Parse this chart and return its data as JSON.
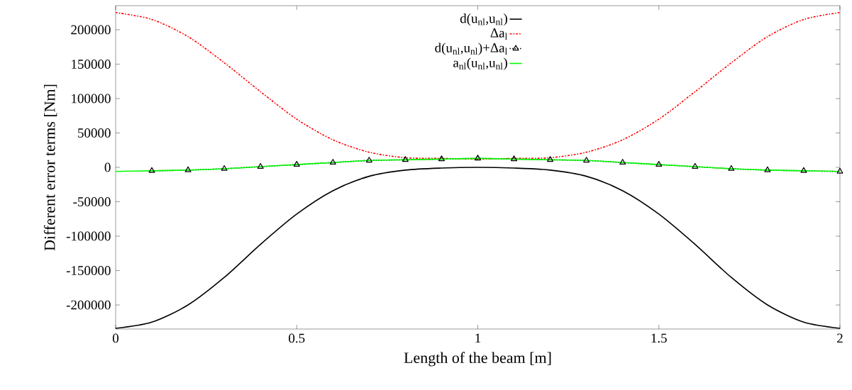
{
  "chart_data": {
    "type": "line",
    "xlabel": "Length of the beam [m]",
    "ylabel": "Different error terms [Nm]",
    "x": [
      0,
      0.1,
      0.2,
      0.3,
      0.4,
      0.5,
      0.6,
      0.7,
      0.8,
      0.9,
      1.0,
      1.1,
      1.2,
      1.3,
      1.4,
      1.5,
      1.6,
      1.7,
      1.8,
      1.9,
      2.0
    ],
    "series": [
      {
        "name": "d(u$_{nl}$,u$_{nl}$)",
        "color": "#000000",
        "line_style": "solid",
        "values": [
          -234000,
          -225000,
          -200000,
          -160000,
          -112000,
          -68000,
          -34000,
          -13000,
          -4000,
          -1000,
          0,
          -1000,
          -4000,
          -13000,
          -34000,
          -68000,
          -112000,
          -160000,
          -200000,
          -225000,
          -234000
        ]
      },
      {
        "name": "Δa$_{l}$",
        "color": "#ff0000",
        "line_style": "dashdot",
        "values": [
          225000,
          215000,
          190000,
          152000,
          110000,
          70000,
          40000,
          22000,
          14000,
          13000,
          12000,
          13000,
          14000,
          22000,
          40000,
          70000,
          110000,
          152000,
          190000,
          215000,
          225000
        ]
      },
      {
        "name": "d(u$_{nl}$,u$_{nl}$)+Δa$_{l}$",
        "color": "#000000",
        "line_style": "dotted",
        "marker": "triangle",
        "x": [
          0.1,
          0.2,
          0.3,
          0.4,
          0.5,
          0.6,
          0.7,
          0.8,
          0.9,
          1.0,
          1.1,
          1.2,
          1.3,
          1.4,
          1.5,
          1.6,
          1.7,
          1.8,
          1.9,
          2.0
        ],
        "values": [
          -5000,
          -4000,
          -2000,
          1000,
          4000,
          7000,
          10000,
          11000,
          12000,
          13000,
          12000,
          11000,
          10000,
          7000,
          4000,
          1000,
          -2000,
          -4000,
          -5000,
          -6000
        ]
      },
      {
        "name": "a$_{nl}$(u$_{nl}$,u$_{nl}$)",
        "color": "#00ff00",
        "line_style": "solid",
        "values": [
          -6000,
          -5000,
          -4000,
          -2000,
          1000,
          4000,
          7000,
          10000,
          11000,
          12000,
          13000,
          12000,
          11000,
          10000,
          7000,
          4000,
          1000,
          -2000,
          -4000,
          -5000,
          -6000
        ]
      }
    ],
    "xlim": [
      0,
      2
    ],
    "ylim": [
      -235000,
      235000
    ],
    "xticks": [
      0,
      0.5,
      1,
      1.5,
      2
    ],
    "yticks": [
      -200000,
      -150000,
      -100000,
      -50000,
      0,
      50000,
      100000,
      150000,
      200000
    ],
    "grid": false,
    "legend": "top"
  }
}
